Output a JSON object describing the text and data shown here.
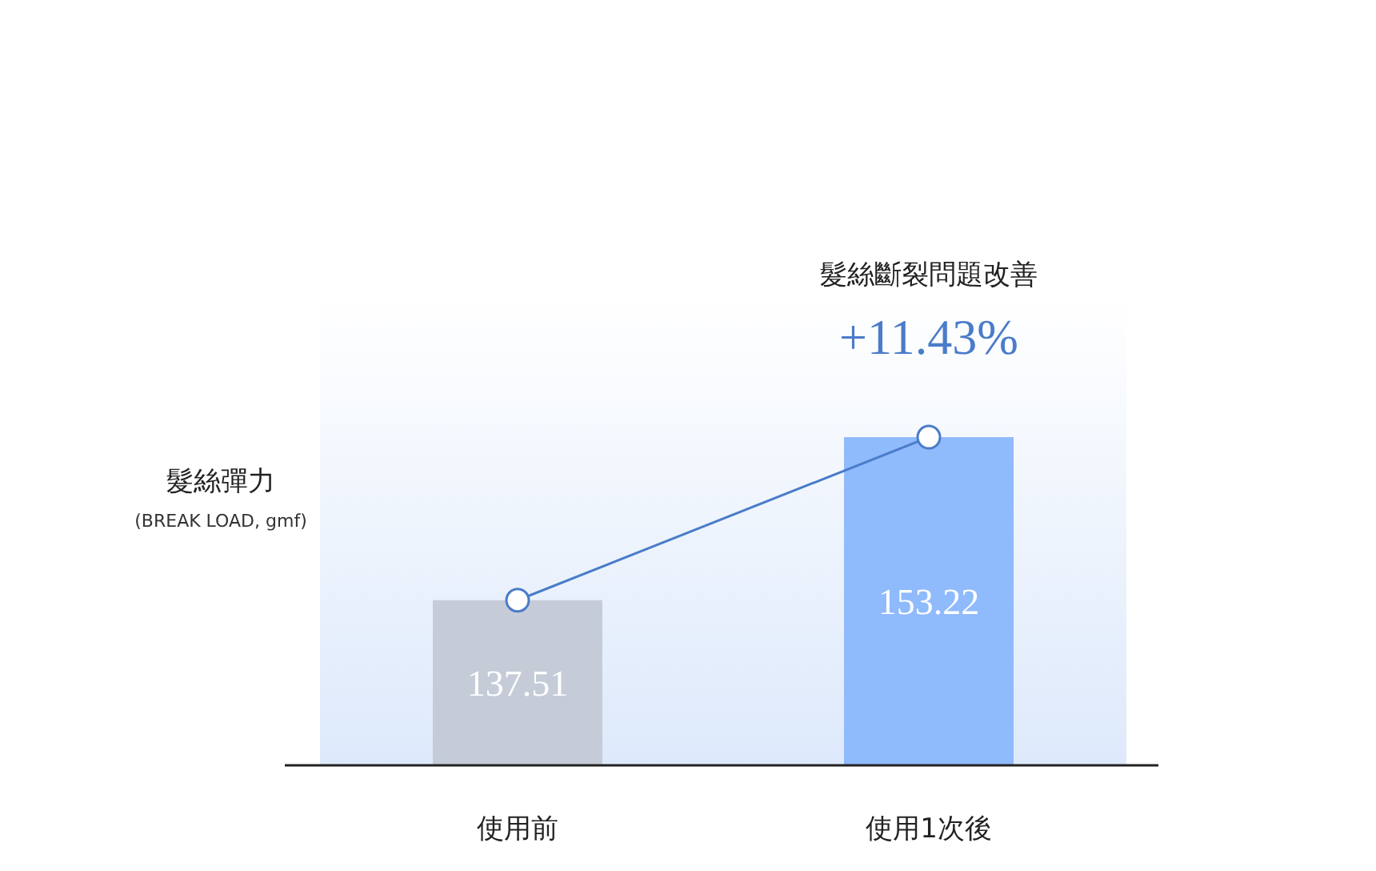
{
  "chart_data": {
    "type": "bar",
    "ylabel": "髮絲彈力",
    "annotations": [
      "髮絲斷裂問題改善",
      "+11.43%",
      "(BREAK LOAD, gmf)"
    ],
    "categories": [
      "使用前",
      "使用1次後"
    ],
    "series": [
      {
        "colors": [
          "#c5ccd8",
          "#8fbafc"
        ],
        "values": [
          137.51,
          153.22
        ],
        "value_labels": [
          "137.51",
          "153.22"
        ]
      },
      {
        "type": "line",
        "color": "#4a7cc9",
        "marker": "circle",
        "values": [
          137.51,
          153.22
        ]
      }
    ],
    "ylim": [
      121.6,
      166.8
    ],
    "tick_labels": "x"
  }
}
